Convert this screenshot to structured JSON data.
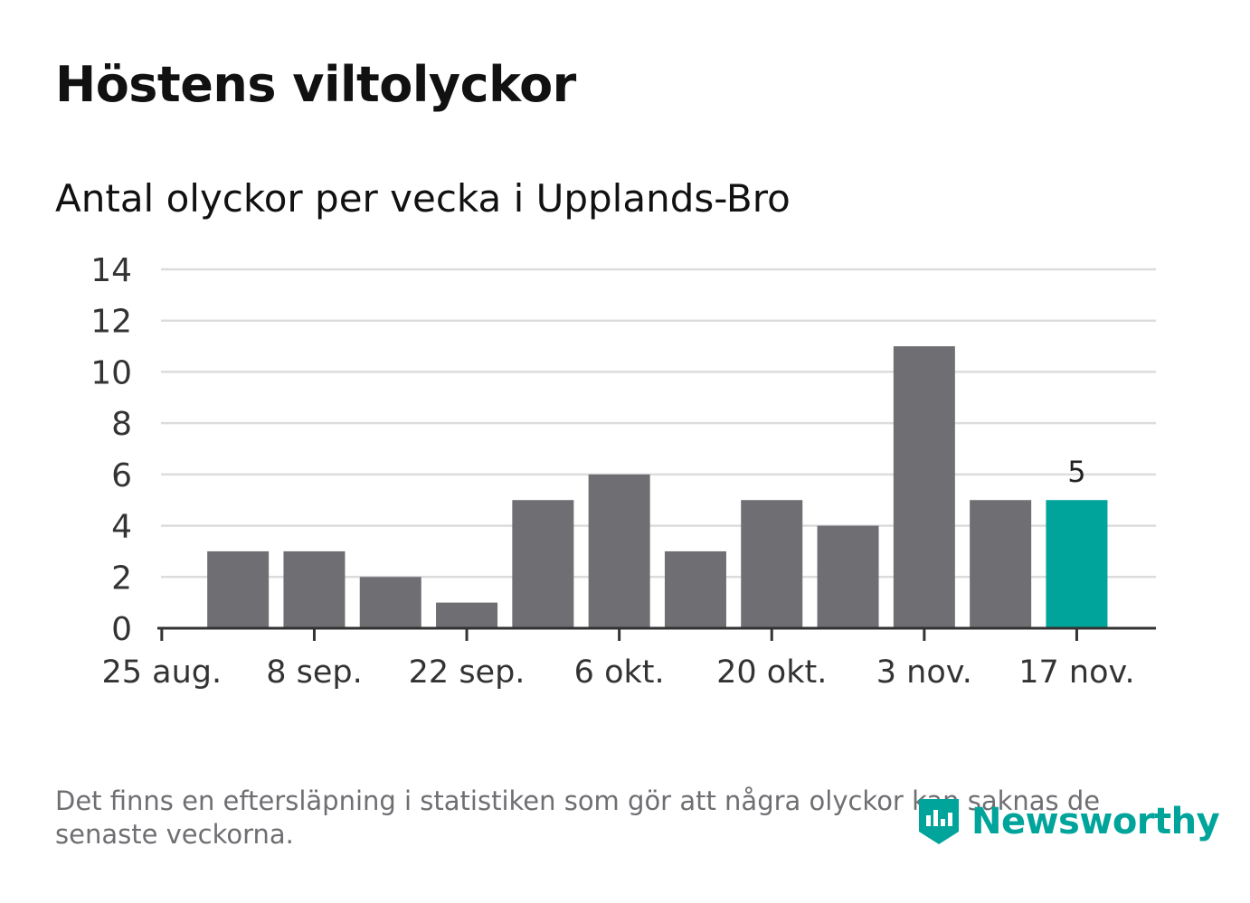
{
  "title": "Höstens viltolyckor",
  "subtitle": "Antal olyckor per vecka i Upplands-Bro",
  "note": "Det finns en eftersläpning i statistiken som gör att några olyckor kan saknas de senaste veckorna.",
  "brand": {
    "name": "Newsworthy",
    "icon": "newsworthy-logo-icon",
    "color": "#00a49a"
  },
  "colors": {
    "bar": "#6f6e73",
    "highlight": "#00a49a",
    "grid": "#dcdcdc",
    "axis": "#333333"
  },
  "chart_data": {
    "type": "bar",
    "title": "Antal olyckor per vecka i Upplands-Bro",
    "xlabel": "",
    "ylabel": "",
    "ylim": [
      0,
      14
    ],
    "yticks": [
      0,
      2,
      4,
      6,
      8,
      10,
      12,
      14
    ],
    "xtick_labels": [
      "25 aug.",
      "8 sep.",
      "22 sep.",
      "6 okt.",
      "20 okt.",
      "3 nov.",
      "17 nov."
    ],
    "values": [
      3,
      3,
      2,
      1,
      5,
      6,
      3,
      5,
      4,
      11,
      5,
      5
    ],
    "highlight_index": 11,
    "highlight_label": "5",
    "grid": true
  }
}
